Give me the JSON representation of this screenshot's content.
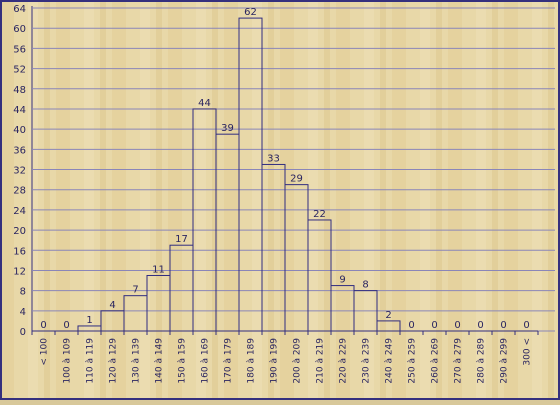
{
  "chart_data": {
    "type": "bar",
    "categories": [
      "< 100",
      "100 à 109",
      "110 à 119",
      "120 à 129",
      "130 à 139",
      "140 à 149",
      "150 à 159",
      "160 à 169",
      "170 à 179",
      "180 à 189",
      "190 à 199",
      "200 à 209",
      "210 à 219",
      "220 à 229",
      "230 à 239",
      "240 à 249",
      "250 à 259",
      "260 à 269",
      "270 à 279",
      "280 à 289",
      "290 à 299",
      "300 <"
    ],
    "values": [
      0,
      0,
      1,
      4,
      7,
      11,
      17,
      44,
      39,
      62,
      33,
      29,
      22,
      9,
      8,
      2,
      0,
      0,
      0,
      0,
      0,
      0
    ],
    "yticks": [
      0,
      4,
      8,
      12,
      16,
      20,
      24,
      28,
      32,
      36,
      40,
      44,
      48,
      52,
      56,
      60,
      64
    ],
    "ylim": [
      0,
      64
    ],
    "grid": true,
    "colors": {
      "background": "#e7d7a6",
      "grid": "#8a86b8",
      "bar_stroke": "#302c80",
      "frame": "#35307e",
      "text": "#2a2560"
    }
  }
}
